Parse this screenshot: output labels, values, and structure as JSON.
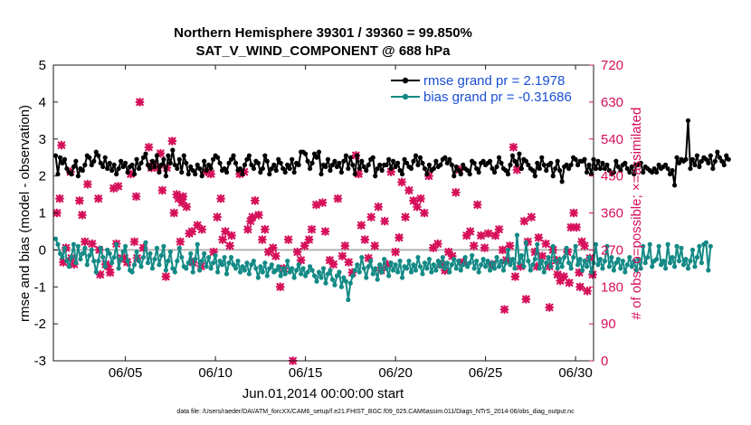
{
  "chart_data": {
    "type": "line",
    "title": "Northern Hemisphere 39301 / 39360 = 99.850%",
    "subtitle": "SAT_V_WIND_COMPONENT @ 688 hPa",
    "xlabel": "Jun.01,2014 00:00:00 start",
    "ylabel_left": "rmse and bias (model - observation)",
    "ylabel_right": "# of obs: o=possible; ×=assimilated",
    "footnote": "data file: /Users/raeder/DAI/ATM_forcXX/CAM6_setup/f.e21.FHIST_BGC.f09_025.CAM6assim.011/Diags_NTrS_2014-06/obs_diag_output.nc",
    "x_range": [
      1,
      31
    ],
    "x_ticks": [
      5,
      10,
      15,
      20,
      25,
      30
    ],
    "x_tick_labels": [
      "06/05",
      "06/10",
      "06/15",
      "06/20",
      "06/25",
      "06/30"
    ],
    "ylim_left": [
      -3,
      5
    ],
    "y_ticks_left": [
      -3,
      -2,
      -1,
      0,
      1,
      2,
      3,
      4,
      5
    ],
    "ylim_right": [
      0,
      720
    ],
    "y_ticks_right": [
      0,
      90,
      180,
      270,
      360,
      450,
      540,
      630,
      720
    ],
    "zero_line": 0,
    "colors": {
      "rmse": "#000000",
      "bias": "#138a86",
      "obs": "#d6105a",
      "zero": "#b4b4b4",
      "legend_text": "#1a4fd6",
      "right_axis": "#d6105a"
    },
    "series": [
      {
        "name": "rmse grand pr = 2.1978",
        "axis": "left",
        "x_start": 1.125,
        "x_step": 0.125,
        "values": [
          2.55,
          2.05,
          2.5,
          2.35,
          2.45,
          2.2,
          2.1,
          2.05,
          2.25,
          2.4,
          2.0,
          2.2,
          2.15,
          2.3,
          2.55,
          2.5,
          2.3,
          2.4,
          2.65,
          2.55,
          2.35,
          2.25,
          2.5,
          2.2,
          2.35,
          2.15,
          2.3,
          2.05,
          2.2,
          2.4,
          2.25,
          2.35,
          2.1,
          2.25,
          2.3,
          2.05,
          2.45,
          2.2,
          2.35,
          2.5,
          2.6,
          2.3,
          2.2,
          2.4,
          2.25,
          2.55,
          2.1,
          2.3,
          2.45,
          2.0,
          2.55,
          2.35,
          2.7,
          2.3,
          2.2,
          2.45,
          2.1,
          2.55,
          2.35,
          2.05,
          2.25,
          2.15,
          2.05,
          2.3,
          2.2,
          2.0,
          2.4,
          2.15,
          2.3,
          2.2,
          2.45,
          2.55,
          2.5,
          2.35,
          2.15,
          2.2,
          2.1,
          2.35,
          2.45,
          2.55,
          2.35,
          2.15,
          2.2,
          2.05,
          2.3,
          2.45,
          2.55,
          2.3,
          2.2,
          2.4,
          2.35,
          2.1,
          2.2,
          2.55,
          2.4,
          2.05,
          2.2,
          2.3,
          2.15,
          2.45,
          2.35,
          2.2,
          2.1,
          2.3,
          2.2,
          2.45,
          2.1,
          2.35,
          2.3,
          2.65,
          2.65,
          2.6,
          2.4,
          2.2,
          2.35,
          2.6,
          2.5,
          2.65,
          2.05,
          2.3,
          2.25,
          2.45,
          2.15,
          2.3,
          2.4,
          2.25,
          2.35,
          2.1,
          2.4,
          2.55,
          2.2,
          2.5,
          2.3,
          2.05,
          2.55,
          2.2,
          2.4,
          2.25,
          2.15,
          2.3,
          2.45,
          2.5,
          2.0,
          2.2,
          2.3,
          2.15,
          2.3,
          2.3,
          2.45,
          2.2,
          2.4,
          2.25,
          2.35,
          2.15,
          2.05,
          2.45,
          2.35,
          2.25,
          2.2,
          2.4,
          2.55,
          2.3,
          2.5,
          2.35,
          2.2,
          2.05,
          2.3,
          2.15,
          2.2,
          2.4,
          2.25,
          2.3,
          2.45,
          2.5,
          2.35,
          2.45,
          2.3,
          2.0,
          2.25,
          2.15,
          2.05,
          2.3,
          2.2,
          2.15,
          2.05,
          2.4,
          2.35,
          2.2,
          2.1,
          2.35,
          2.4,
          2.3,
          2.35,
          2.4,
          2.2,
          2.1,
          2.25,
          2.5,
          2.35,
          2.2,
          2.15,
          2.05,
          2.3,
          2.55,
          2.4,
          2.3,
          2.6,
          2.2,
          2.45,
          2.4,
          2.3,
          2.2,
          2.15,
          2.0,
          2.35,
          2.2,
          2.5,
          2.3,
          2.15,
          2.3,
          2.35,
          2.0,
          2.2,
          2.4,
          2.15,
          1.85,
          2.25,
          2.3,
          2.2,
          2.3,
          2.5,
          2.45,
          2.3,
          2.4,
          2.4,
          2.45,
          2.1,
          2.3,
          2.05,
          2.45,
          2.2,
          2.4,
          2.2,
          2.35,
          2.2,
          2.3,
          2.15,
          2.05,
          2.1,
          2.4,
          2.25,
          2.15,
          2.3,
          2.35,
          2.2,
          2.1,
          2.25,
          2.05,
          2.3,
          2.3,
          2.35,
          2.1,
          2.25,
          2.2,
          2.15,
          2.1,
          2.2,
          2.1,
          2.3,
          2.2,
          2.25,
          2.3,
          2.2,
          2.05,
          2.15,
          1.75,
          2.5,
          2.35,
          2.45,
          2.4,
          2.45,
          3.5,
          2.2,
          2.45,
          2.3,
          2.55,
          2.25,
          2.4,
          2.5,
          2.45,
          2.35,
          2.55,
          2.2,
          2.4,
          2.65,
          2.5,
          2.4,
          2.3,
          2.55,
          2.45
        ]
      },
      {
        "name": "bias grand pr = -0.31686",
        "axis": "left",
        "x_start": 1.125,
        "x_step": 0.125,
        "values": [
          0.3,
          0.15,
          -0.1,
          -0.2,
          0.05,
          -0.3,
          -0.45,
          -0.2,
          0.15,
          -0.35,
          0.1,
          -0.25,
          -0.1,
          0.05,
          -0.4,
          -0.15,
          0.0,
          -0.3,
          -0.6,
          -0.3,
          0.05,
          -0.2,
          -0.45,
          0.0,
          -0.1,
          -0.35,
          -0.2,
          0.15,
          -0.5,
          -0.25,
          -0.05,
          0.1,
          -0.3,
          -0.55,
          -0.6,
          -0.4,
          -0.05,
          -0.3,
          -0.45,
          -0.2,
          0.2,
          -0.35,
          -0.1,
          -0.5,
          -0.25,
          0.05,
          -0.4,
          -0.15,
          0.1,
          -0.55,
          -0.3,
          -0.05,
          -0.5,
          -0.6,
          -0.3,
          0.05,
          -0.2,
          -0.45,
          -0.5,
          -0.35,
          -0.1,
          -0.6,
          -0.25,
          0.15,
          -0.55,
          -0.3,
          -0.1,
          -0.45,
          -0.2,
          -0.5,
          -0.35,
          -0.15,
          -0.6,
          -0.3,
          -0.4,
          -0.2,
          -0.65,
          -0.35,
          -0.2,
          -0.4,
          -0.5,
          -0.3,
          -0.6,
          -0.45,
          -0.55,
          -0.35,
          -0.65,
          -0.4,
          -0.3,
          -0.5,
          -0.75,
          -0.45,
          -0.6,
          -0.35,
          -0.7,
          -0.5,
          -0.4,
          -0.6,
          -0.55,
          -0.45,
          -0.7,
          -0.5,
          -0.65,
          -0.3,
          -0.6,
          -0.5,
          -0.75,
          -0.55,
          -0.4,
          -0.65,
          -0.5,
          -0.7,
          -0.6,
          -0.45,
          -0.55,
          -0.7,
          -0.85,
          -0.6,
          -0.75,
          -0.5,
          -0.9,
          -0.65,
          -0.55,
          -0.8,
          -0.95,
          -0.7,
          -0.6,
          -1.0,
          -0.75,
          -0.85,
          -1.35,
          -0.9,
          -0.7,
          -0.55,
          -0.4,
          -0.6,
          -0.2,
          -0.5,
          -0.75,
          -0.45,
          -0.3,
          -0.65,
          -0.5,
          -0.8,
          -0.4,
          -0.6,
          -0.25,
          -0.5,
          -0.7,
          -0.35,
          -0.55,
          -0.4,
          -0.6,
          -0.3,
          -0.75,
          -0.45,
          -0.5,
          -0.3,
          -0.6,
          -0.4,
          -0.55,
          -0.2,
          -0.45,
          -0.65,
          -0.35,
          -0.5,
          -0.25,
          -0.6,
          -0.4,
          -0.55,
          -0.3,
          -0.45,
          -0.2,
          -0.5,
          -0.35,
          -0.6,
          -0.4,
          -0.25,
          -0.5,
          -0.3,
          -0.55,
          -0.4,
          -0.2,
          -0.45,
          -0.35,
          -0.15,
          -0.5,
          -0.3,
          -0.6,
          -0.4,
          -0.25,
          -0.45,
          -0.3,
          -0.55,
          -0.35,
          -0.5,
          -0.2,
          -0.45,
          -0.3,
          -0.55,
          -0.35,
          0.0,
          -0.4,
          -0.25,
          -0.5,
          0.4,
          -0.35,
          -0.15,
          -0.45,
          0.2,
          -0.3,
          -0.55,
          -0.4,
          -0.25,
          0.15,
          -0.5,
          -0.3,
          -0.6,
          -0.35,
          -0.2,
          -0.45,
          0.1,
          -0.3,
          -0.5,
          -0.25,
          -0.45,
          -0.2,
          0.05,
          -0.35,
          -0.5,
          -0.2,
          0.1,
          -0.4,
          -0.25,
          -0.55,
          -0.3,
          -0.45,
          -0.2,
          -0.6,
          -0.35,
          0.15,
          -0.4,
          -0.25,
          -0.5,
          -0.3,
          0.1,
          -0.45,
          -0.2,
          -0.55,
          -0.35,
          -0.25,
          -0.5,
          -0.3,
          -0.6,
          -0.4,
          -0.2,
          -0.45,
          -0.3,
          -0.55,
          -0.25,
          -0.5,
          0.1,
          -0.35,
          -0.2,
          0.15,
          -0.45,
          -0.3,
          -0.25,
          0.1,
          -0.4,
          -0.3,
          -0.5,
          0.15,
          -0.35,
          -0.2,
          -0.45,
          0.1,
          -0.3,
          0.05,
          -0.4,
          -0.25,
          -0.5,
          -0.3,
          0.0,
          -0.45,
          -0.2,
          0.1,
          -0.35,
          0.15,
          0.2,
          -0.55,
          0.1
        ]
      }
    ],
    "obs_counts": {
      "axis": "right",
      "values": [
        360,
        275,
        525,
        395,
        240,
        250,
        460,
        390,
        235,
        290,
        355,
        285,
        430,
        270,
        210,
        235,
        395,
        230,
        215,
        420,
        425,
        285,
        250,
        250,
        240,
        455,
        290,
        400,
        630,
        250,
        275,
        520,
        480,
        470,
        470,
        505,
        415,
        470,
        205,
        535,
        360,
        405,
        395,
        290,
        385,
        400,
        375,
        310,
        315,
        240,
        330,
        230,
        320,
        460,
        455,
        265,
        350,
        395,
        295,
        315,
        280,
        305,
        455,
        460,
        320,
        340,
        350,
        390,
        355,
        295,
        320,
        265,
        275,
        255,
        180,
        225,
        295,
        0,
        265,
        245,
        280,
        295,
        320,
        380,
        385,
        315,
        245,
        235,
        395,
        255,
        280,
        240,
        215,
        500,
        455,
        330,
        295,
        250,
        350,
        280,
        375,
        220,
        340,
        235,
        460,
        265,
        300,
        435,
        350,
        415,
        390,
        375,
        395,
        360,
        450,
        275,
        285,
        235,
        220,
        265,
        255,
        410,
        465,
        240,
        305,
        315,
        280,
        380,
        305,
        275,
        310,
        235,
        305,
        320,
        270,
        245,
        280,
        520,
        465,
        230,
        340,
        290,
        350,
        265,
        300,
        255,
        285,
        230,
        270,
        245,
        195,
        205,
        265,
        325,
        360,
        325,
        215,
        290,
        280,
        170,
        250,
        210,
        180,
        190,
        210,
        130,
        230,
        150,
        205,
        125
      ],
      "x_values": [
        1.2,
        1.7,
        1.45,
        1.35,
        1.55,
        2.0,
        1.95,
        2.45,
        2.15,
        2.75,
        2.6,
        3.15,
        2.9,
        3.55,
        3.6,
        3.9,
        3.5,
        4.05,
        4.15,
        4.35,
        4.6,
        4.5,
        4.8,
        4.95,
        5.1,
        5.3,
        5.5,
        5.6,
        5.8,
        5.65,
        6.0,
        6.3,
        6.55,
        6.8,
        6.45,
        6.95,
        7.05,
        7.3,
        7.25,
        7.6,
        7.7,
        7.85,
        7.95,
        8.05,
        8.15,
        8.2,
        8.4,
        8.55,
        8.7,
        8.75,
        9.0,
        9.2,
        9.25,
        9.5,
        9.75,
        9.9,
        10.1,
        10.3,
        10.4,
        10.55,
        10.8,
        10.9,
        11.35,
        11.6,
        11.8,
        11.95,
        12.05,
        12.2,
        12.4,
        12.6,
        12.75,
        12.95,
        13.2,
        13.35,
        13.6,
        13.8,
        14.05,
        14.3,
        14.55,
        14.75,
        14.95,
        15.2,
        15.35,
        15.6,
        15.95,
        16.1,
        16.35,
        16.55,
        16.8,
        17.05,
        17.2,
        17.4,
        17.6,
        17.8,
        17.95,
        18.1,
        18.3,
        18.5,
        18.65,
        18.85,
        19.05,
        19.2,
        19.4,
        19.55,
        19.75,
        20.0,
        20.2,
        20.35,
        20.55,
        20.75,
        21.0,
        21.2,
        21.4,
        21.6,
        21.85,
        22.1,
        22.35,
        22.55,
        22.75,
        22.95,
        23.15,
        23.35,
        23.55,
        23.75,
        23.95,
        24.15,
        24.35,
        24.55,
        24.75,
        24.95,
        25.15,
        25.35,
        25.55,
        25.75,
        25.95,
        26.15,
        26.35,
        26.55,
        26.75,
        26.95,
        27.15,
        27.35,
        27.55,
        27.75,
        27.95,
        28.15,
        28.35,
        28.55,
        28.75,
        28.95,
        29.15,
        29.35,
        29.55,
        29.75,
        29.9,
        30.05,
        30.2,
        30.35,
        30.5,
        30.65,
        30.8,
        30.95,
        30.25,
        29.65,
        29.0,
        28.55,
        27.85,
        27.25,
        26.65,
        26.05
      ]
    }
  }
}
